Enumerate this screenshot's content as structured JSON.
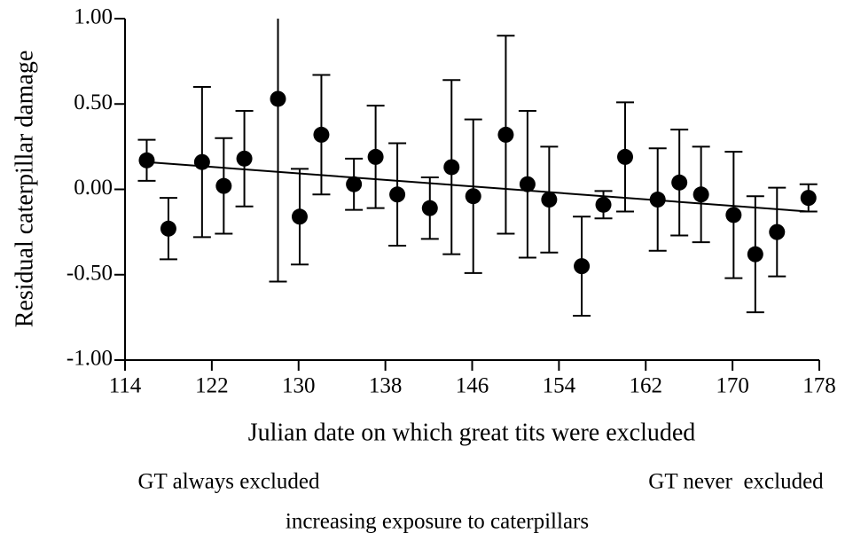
{
  "chart_data": {
    "type": "scatter",
    "y_label": "Residual caterpillar damage",
    "x_label": "Julian date on which great tits were excluded",
    "annotations": [
      "GT always excluded",
      "GT never  excluded",
      "increasing exposure to caterpillars"
    ],
    "x": [
      116,
      118,
      121.1,
      123.1,
      125,
      128.1,
      130.1,
      132.1,
      135.1,
      137.1,
      139.1,
      142.1,
      144.1,
      146.1,
      149.1,
      151.1,
      153.1,
      156.1,
      158.1,
      160.1,
      163.1,
      165.1,
      167.1,
      170.1,
      172.1,
      174.1,
      177
    ],
    "series": [
      {
        "color": "#000000",
        "values": [
          0.17,
          -0.23,
          0.16,
          0.02,
          0.18,
          0.53,
          -0.16,
          0.32,
          0.03,
          0.19,
          -0.03,
          -0.11,
          0.13,
          -0.04,
          0.32,
          0.03,
          -0.06,
          -0.45,
          -0.09,
          0.19,
          -0.06,
          0.04,
          -0.03,
          -0.15,
          -0.38,
          -0.25,
          -0.05
        ],
        "errors": [
          0.12,
          0.18,
          0.44,
          0.28,
          0.28,
          1.07,
          0.28,
          0.35,
          0.15,
          0.3,
          0.3,
          0.18,
          0.51,
          0.45,
          0.58,
          0.43,
          0.31,
          0.29,
          0.08,
          0.32,
          0.3,
          0.31,
          0.28,
          0.37,
          0.34,
          0.26,
          0.08
        ]
      }
    ],
    "trend": {
      "x": [
        116,
        177
      ],
      "values": [
        0.16,
        -0.13
      ]
    },
    "xlim": [
      114,
      178
    ],
    "xticks": [
      114,
      122,
      130,
      138,
      146,
      154,
      162,
      170,
      178
    ],
    "ylim": [
      -1,
      1
    ],
    "yticks": [
      {
        "value": -1,
        "label": "-1.00"
      },
      {
        "value": -0.5,
        "label": "-0.50"
      },
      {
        "value": 0,
        "label": "0.00"
      },
      {
        "value": 0.5,
        "label": "0.50"
      },
      {
        "value": 1,
        "label": "1.00"
      }
    ]
  }
}
